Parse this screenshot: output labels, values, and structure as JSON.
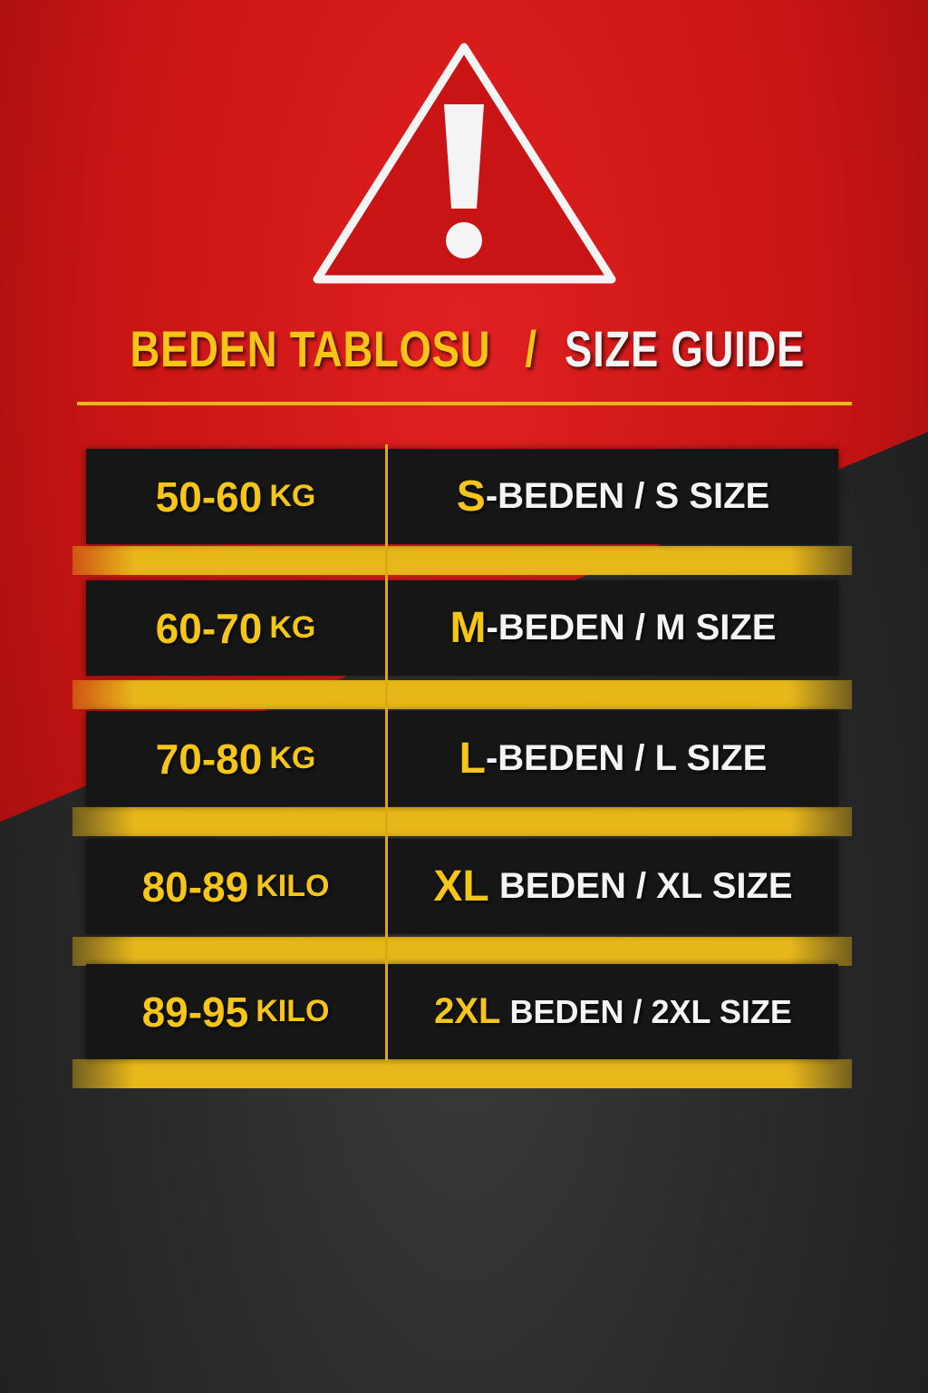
{
  "header": {
    "icon": "warning-triangle-icon",
    "title_tr": "BEDEN TABLOSU",
    "title_sep": "/",
    "title_en": "SIZE GUIDE"
  },
  "colors": {
    "red": "#c81414",
    "yellow": "#f5c518",
    "dark": "#262626",
    "white": "#f4f4f4"
  },
  "rows": [
    {
      "range": "50-60",
      "unit": "KG",
      "code": "S",
      "label": "-BEDEN / S SIZE"
    },
    {
      "range": "60-70",
      "unit": "KG",
      "code": "M",
      "label": "-BEDEN / M SIZE"
    },
    {
      "range": "70-80",
      "unit": "KG",
      "code": "L",
      "label": "-BEDEN / L SIZE"
    },
    {
      "range": "80-89",
      "unit": "KILO",
      "code": "XL",
      "label": " BEDEN / XL SIZE"
    },
    {
      "range": "89-95",
      "unit": "KILO",
      "code": "2XL",
      "label": " BEDEN / 2XL SIZE"
    }
  ]
}
